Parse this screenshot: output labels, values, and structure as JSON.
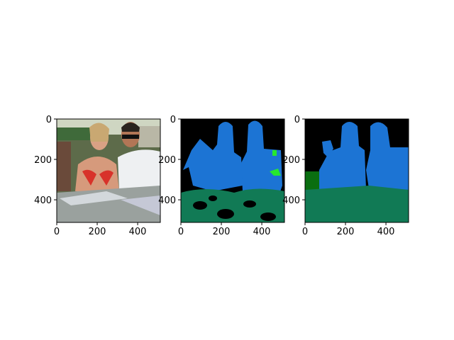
{
  "chart_data": [
    {
      "type": "image",
      "xlim": [
        0,
        512
      ],
      "ylim": [
        512,
        0
      ],
      "xticks": [
        0,
        200,
        400
      ],
      "yticks": [
        0,
        200,
        400
      ]
    },
    {
      "type": "image",
      "xlim": [
        0,
        512
      ],
      "ylim": [
        512,
        0
      ],
      "xticks": [
        0,
        200,
        400
      ],
      "yticks": [
        0,
        200,
        400
      ]
    },
    {
      "type": "image",
      "xlim": [
        0,
        512
      ],
      "ylim": [
        512,
        0
      ],
      "xticks": [
        0,
        200,
        400
      ],
      "yticks": [
        0,
        200,
        400
      ]
    }
  ]
}
